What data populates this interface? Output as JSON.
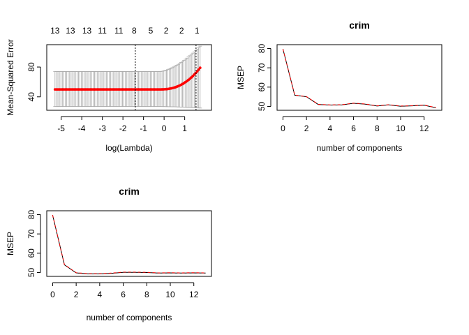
{
  "chart_data": [
    {
      "type": "line",
      "subtype": "cv-error-with-errorbars",
      "title": "",
      "xlabel": "log(Lambda)",
      "ylabel": "Mean-Squared Error",
      "xlim": [
        -5.7,
        2.3
      ],
      "ylim": [
        22,
        110
      ],
      "xticks": [
        -5,
        -4,
        -3,
        -2,
        -1,
        0,
        1
      ],
      "yticks": [
        40,
        80
      ],
      "top_axis_labels": [
        {
          "x": -5.3,
          "label": "13"
        },
        {
          "x": -4.55,
          "label": "13"
        },
        {
          "x": -3.75,
          "label": "13"
        },
        {
          "x": -3.0,
          "label": "11"
        },
        {
          "x": -2.2,
          "label": "11"
        },
        {
          "x": -1.45,
          "label": "8"
        },
        {
          "x": -0.65,
          "label": "5"
        },
        {
          "x": 0.1,
          "label": "2"
        },
        {
          "x": 0.85,
          "label": "2"
        },
        {
          "x": 1.6,
          "label": "1"
        }
      ],
      "vlines": [
        -1.4,
        1.55
      ],
      "x_range": [
        -5.3,
        1.75
      ],
      "n_points": 100,
      "curve": {
        "base_mse": 50,
        "rise_start": -0.2,
        "rise_amp": 29,
        "rise_exp": 2.4
      },
      "band": {
        "base_lo": 27,
        "base_hi": 74,
        "lo_rise_amp": -2,
        "hi_rise_amp": 34,
        "rise_exp": 1.6
      },
      "colors": {
        "points": "#ff0000",
        "errorbars": "#aaaaaa",
        "axis": "#000000"
      },
      "grid": false
    },
    {
      "type": "line",
      "title": "crim",
      "xlabel": "number of components",
      "ylabel": "MSEP",
      "xlim": [
        -0.5,
        13.5
      ],
      "ylim": [
        48,
        82
      ],
      "xticks": [
        0,
        2,
        4,
        6,
        8,
        10,
        12
      ],
      "yticks": [
        50,
        60,
        70,
        80
      ],
      "x": [
        0,
        1,
        2,
        3,
        4,
        5,
        6,
        7,
        8,
        9,
        10,
        11,
        12,
        13
      ],
      "series": [
        {
          "values": [
            79.8,
            55.8,
            55.0,
            51.0,
            50.7,
            50.8,
            51.6,
            51.2,
            50.2,
            50.8,
            50.1,
            50.3,
            50.6,
            49.3
          ],
          "color": "#000000",
          "dash": "none"
        },
        {
          "values": [
            79.8,
            55.9,
            55.1,
            51.1,
            50.8,
            50.9,
            51.7,
            51.3,
            50.3,
            50.9,
            50.2,
            50.4,
            50.7,
            49.4
          ],
          "color": "#ff0000",
          "dash": "4 3"
        }
      ],
      "grid": false
    },
    {
      "type": "line",
      "title": "crim",
      "xlabel": "number of components",
      "ylabel": "MSEP",
      "xlim": [
        -0.5,
        13.5
      ],
      "ylim": [
        48,
        82
      ],
      "xticks": [
        0,
        2,
        4,
        6,
        8,
        10,
        12
      ],
      "yticks": [
        50,
        60,
        70,
        80
      ],
      "x": [
        0,
        1,
        2,
        3,
        4,
        5,
        6,
        7,
        8,
        9,
        10,
        11,
        12,
        13
      ],
      "series": [
        {
          "values": [
            79.8,
            54.0,
            49.8,
            49.3,
            49.3,
            49.6,
            50.1,
            50.1,
            50.0,
            49.7,
            49.8,
            49.7,
            49.8,
            49.7
          ],
          "color": "#000000",
          "dash": "none"
        },
        {
          "values": [
            79.8,
            54.1,
            49.9,
            49.4,
            49.4,
            49.7,
            50.2,
            50.2,
            50.1,
            49.8,
            49.9,
            49.8,
            49.9,
            49.8
          ],
          "color": "#ff0000",
          "dash": "4 3"
        }
      ],
      "grid": false
    }
  ]
}
